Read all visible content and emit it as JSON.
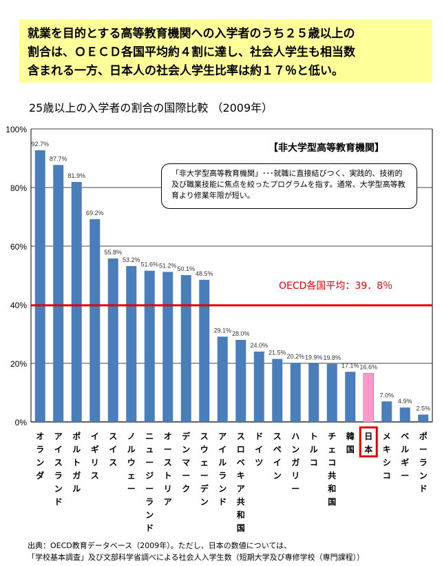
{
  "headline": "就業を目的とする高等教育機関への入学者のうち２５歳以上の\n割合は、ＯＥＣＤ各国平均約４割に達し、社会人学生も相当数\n含まれる一方、日本人の社会人学生比率は約１７％と低い。",
  "footer": "出典：OECD教育データベース（2009年）。ただし、日本の数値については、\n「学校基本調査」及び文部科学省調べによる社会人入学生数（短期大学及び専修学校（専門課程））",
  "chart_data": {
    "type": "bar",
    "title": "25歳以上の入学者の割合の国際比較 （2009年）",
    "category_label": "【非大学型高等教育機関】",
    "note": "「非大学型高等教育機関」･･･就職に直接結びつく、実践的、技術的及び職業技能に焦点を絞ったプログラムを指す。通常、大学型高等教育より修業年限が短い。",
    "categories": [
      "オランダ",
      "アイスランド",
      "ポルトガル",
      "イギリス",
      "スイス",
      "ノルウェー",
      "ニュージーランド",
      "オーストリア",
      "デンマーク",
      "スウェーデン",
      "アイルランド",
      "スロベキア共和国",
      "ドイツ",
      "スペイン",
      "ハンガリー",
      "トルコ",
      "チェコ共和国",
      "韓国",
      "日本",
      "メキシコ",
      "ベルギー",
      "ポーランド"
    ],
    "values": [
      92.7,
      87.7,
      81.9,
      69.2,
      55.8,
      53.2,
      51.6,
      51.2,
      50.1,
      48.5,
      29.1,
      28.0,
      24.0,
      21.5,
      20.2,
      19.9,
      19.8,
      17.1,
      16.6,
      7.0,
      4.9,
      2.5
    ],
    "data_labels": [
      "92.7%",
      "87.7%",
      "81.9%",
      "69.2%",
      "55.8%",
      "53.2%",
      "51.6%",
      "51.2%",
      "50.1%",
      "48.5%",
      "29.1%",
      "28.0%",
      "24.0%",
      "21.5%",
      "20.2%",
      "19.9%",
      "19.8%",
      "17.1%",
      "16.6%",
      "7.0%",
      "4.9%",
      "2.5%"
    ],
    "highlight": "日本",
    "ylim": [
      0,
      100
    ],
    "yticks": [
      "0%",
      "20%",
      "40%",
      "60%",
      "80%",
      "100%"
    ],
    "grid": true,
    "average": {
      "value": 39.8,
      "label": "OECD各国平均：39．8％",
      "color": "#e00000"
    },
    "colors": {
      "bar": "#4a7ebb",
      "highlight": "#ff99cc"
    }
  }
}
